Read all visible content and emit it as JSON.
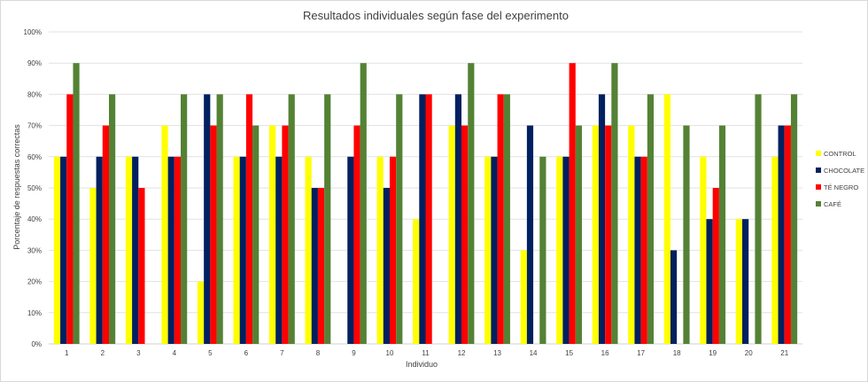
{
  "chart_data": {
    "type": "bar",
    "title": "Resultados individuales según fase del experimento",
    "xlabel": "Individuo",
    "ylabel": "Porcentaje de respuestas correctas",
    "categories": [
      "1",
      "2",
      "3",
      "4",
      "5",
      "6",
      "7",
      "8",
      "9",
      "10",
      "11",
      "12",
      "13",
      "14",
      "15",
      "16",
      "17",
      "18",
      "19",
      "20",
      "21"
    ],
    "ylim": [
      0,
      1
    ],
    "yticks": [
      "0%",
      "10%",
      "20%",
      "30%",
      "40%",
      "50%",
      "60%",
      "70%",
      "80%",
      "90%",
      "100%"
    ],
    "grid": true,
    "legend_position": "right",
    "series": [
      {
        "name": "CONTROL",
        "color": "#ffff00",
        "values": [
          0.6,
          0.5,
          0.6,
          0.7,
          0.2,
          0.6,
          0.7,
          0.6,
          0,
          0.6,
          0.4,
          0.7,
          0.6,
          0.3,
          0.6,
          0.7,
          0.7,
          0.8,
          0.6,
          0.4,
          0.6
        ]
      },
      {
        "name": "CHOCOLATE",
        "color": "#002060",
        "values": [
          0.6,
          0.6,
          0.6,
          0.6,
          0.8,
          0.6,
          0.6,
          0.5,
          0.6,
          0.5,
          0.8,
          0.8,
          0.6,
          0.7,
          0.6,
          0.8,
          0.6,
          0.3,
          0.4,
          0.4,
          0.7
        ]
      },
      {
        "name": "TÉ NEGRO",
        "color": "#ff0000",
        "values": [
          0.8,
          0.7,
          0.5,
          0.6,
          0.7,
          0.8,
          0.7,
          0.5,
          0.7,
          0.6,
          0.8,
          0.7,
          0.8,
          0,
          0.9,
          0.7,
          0.6,
          0,
          0.5,
          0,
          0.7
        ]
      },
      {
        "name": "CAFÉ",
        "color": "#548235",
        "values": [
          0.9,
          0.8,
          0,
          0.8,
          0.8,
          0.7,
          0.8,
          0.8,
          0.9,
          0.8,
          0,
          0.9,
          0.8,
          0.6,
          0.7,
          0.9,
          0.8,
          0.7,
          0.7,
          0.8,
          0.8
        ]
      }
    ]
  }
}
